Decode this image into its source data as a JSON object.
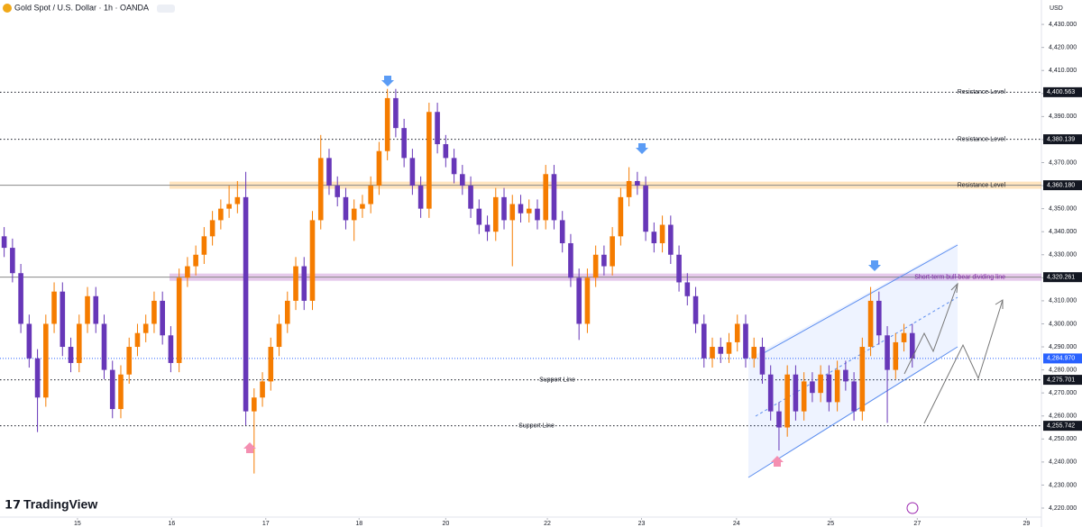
{
  "chart_data": {
    "type": "candlestick",
    "title": "Gold Spot / U.S. Dollar · 1h · OANDA",
    "currency": "USD",
    "watermark": "TradingView",
    "up_color": "#f57c00",
    "down_color": "#6737b8",
    "open": [
      4338,
      4333,
      4322,
      4300,
      4285,
      4268,
      4300,
      4314,
      4290,
      4283,
      4300,
      4312,
      4300,
      4280,
      4263,
      4278,
      4290,
      4296,
      4300,
      4310,
      4295,
      4283,
      4320,
      4325,
      4330,
      4338,
      4345,
      4350,
      4352,
      4355,
      4262,
      4268,
      4275,
      4290,
      4300,
      4310,
      4325,
      4310,
      4345,
      4372,
      4360,
      4355,
      4345,
      4350,
      4352,
      4360,
      4375,
      4398,
      4385,
      4372,
      4360,
      4350,
      4392,
      4378,
      4372,
      4365,
      4360,
      4350,
      4343,
      4340,
      4355,
      4345,
      4352,
      4348,
      4350,
      4345,
      4365,
      4345,
      4335,
      4320,
      4300,
      4320,
      4330,
      4325,
      4338,
      4355,
      4362,
      4360,
      4340,
      4335,
      4343,
      4330,
      4318,
      4312,
      4300,
      4285,
      4290,
      4287,
      4292,
      4300,
      4285,
      4290,
      4278,
      4262,
      4255,
      4278,
      4262,
      4275,
      4270,
      4278,
      4266,
      4280,
      4275,
      4262,
      4290,
      4310,
      4295,
      4280,
      4292,
      4296
    ],
    "high": [
      4342,
      4337,
      4326,
      4304,
      4289,
      4304,
      4318,
      4318,
      4294,
      4304,
      4316,
      4316,
      4304,
      4284,
      4282,
      4294,
      4300,
      4304,
      4314,
      4314,
      4299,
      4324,
      4329,
      4334,
      4342,
      4349,
      4354,
      4360,
      4362,
      4366,
      4272,
      4279,
      4294,
      4304,
      4314,
      4329,
      4329,
      4349,
      4382,
      4376,
      4364,
      4359,
      4354,
      4356,
      4364,
      4379,
      4402,
      4402,
      4389,
      4376,
      4364,
      4396,
      4396,
      4382,
      4376,
      4369,
      4364,
      4354,
      4347,
      4359,
      4359,
      4356,
      4356,
      4354,
      4354,
      4369,
      4369,
      4349,
      4339,
      4324,
      4324,
      4334,
      4334,
      4342,
      4359,
      4368,
      4366,
      4364,
      4344,
      4347,
      4347,
      4334,
      4322,
      4316,
      4304,
      4294,
      4294,
      4296,
      4304,
      4304,
      4294,
      4294,
      4282,
      4266,
      4282,
      4282,
      4279,
      4279,
      4282,
      4282,
      4284,
      4284,
      4279,
      4294,
      4316,
      4314,
      4299,
      4296,
      4300,
      4300
    ],
    "low": [
      4329,
      4318,
      4296,
      4281,
      4253,
      4264,
      4296,
      4286,
      4279,
      4279,
      4296,
      4296,
      4276,
      4259,
      4259,
      4274,
      4286,
      4292,
      4296,
      4291,
      4279,
      4279,
      4316,
      4321,
      4326,
      4334,
      4341,
      4346,
      4348,
      4256,
      4235,
      4264,
      4271,
      4286,
      4296,
      4306,
      4306,
      4306,
      4341,
      4356,
      4351,
      4341,
      4336,
      4346,
      4348,
      4356,
      4371,
      4381,
      4368,
      4356,
      4346,
      4346,
      4374,
      4368,
      4361,
      4356,
      4346,
      4339,
      4336,
      4336,
      4341,
      4325,
      4344,
      4344,
      4341,
      4341,
      4341,
      4331,
      4316,
      4293,
      4296,
      4316,
      4321,
      4321,
      4334,
      4351,
      4356,
      4336,
      4331,
      4331,
      4326,
      4314,
      4308,
      4296,
      4281,
      4281,
      4283,
      4283,
      4288,
      4281,
      4281,
      4274,
      4258,
      4245,
      4251,
      4258,
      4258,
      4266,
      4266,
      4262,
      4262,
      4271,
      4258,
      4258,
      4286,
      4291,
      4257,
      4276,
      4288,
      4281
    ],
    "close": [
      4333,
      4322,
      4300,
      4285,
      4268,
      4300,
      4314,
      4290,
      4283,
      4300,
      4312,
      4300,
      4280,
      4263,
      4278,
      4290,
      4296,
      4300,
      4310,
      4295,
      4283,
      4320,
      4325,
      4330,
      4338,
      4345,
      4350,
      4352,
      4355,
      4262,
      4268,
      4275,
      4290,
      4300,
      4310,
      4325,
      4310,
      4345,
      4372,
      4360,
      4355,
      4345,
      4350,
      4352,
      4360,
      4375,
      4398,
      4385,
      4372,
      4360,
      4350,
      4392,
      4378,
      4372,
      4365,
      4360,
      4350,
      4343,
      4340,
      4355,
      4345,
      4352,
      4348,
      4350,
      4345,
      4365,
      4345,
      4335,
      4320,
      4300,
      4320,
      4330,
      4325,
      4338,
      4355,
      4362,
      4360,
      4340,
      4335,
      4343,
      4330,
      4318,
      4312,
      4300,
      4285,
      4290,
      4287,
      4292,
      4300,
      4285,
      4290,
      4278,
      4262,
      4255,
      4278,
      4262,
      4275,
      4270,
      4278,
      4266,
      4280,
      4275,
      4262,
      4290,
      4310,
      4295,
      4280,
      4292,
      4296,
      4284.97
    ],
    "xlim": [
      0,
      125
    ],
    "xticks": [
      {
        "value": 9.3,
        "label": "15"
      },
      {
        "value": 20.6,
        "label": "16"
      },
      {
        "value": 31.9,
        "label": "17"
      },
      {
        "value": 43.1,
        "label": "18"
      },
      {
        "value": 53.5,
        "label": "20"
      },
      {
        "value": 65.7,
        "label": "22"
      },
      {
        "value": 77,
        "label": "23"
      },
      {
        "value": 88.4,
        "label": "24"
      },
      {
        "value": 99.7,
        "label": "25"
      },
      {
        "value": 110.1,
        "label": "27"
      },
      {
        "value": 123.2,
        "label": "29"
      }
    ],
    "ylim": [
      4215.7,
      4440.6
    ],
    "yticks": [
      {
        "value": 4220,
        "label": "4,220.000"
      },
      {
        "value": 4230,
        "label": "4,230.000"
      },
      {
        "value": 4240,
        "label": "4,240.000"
      },
      {
        "value": 4250,
        "label": "4,250.000"
      },
      {
        "value": 4260,
        "label": "4,260.000"
      },
      {
        "value": 4270,
        "label": "4,270.000"
      },
      {
        "value": 4280,
        "label": "4,280.000"
      },
      {
        "value": 4290,
        "label": "4,290.000"
      },
      {
        "value": 4300,
        "label": "4,300.000"
      },
      {
        "value": 4310,
        "label": "4,310.000"
      },
      {
        "value": 4320,
        "label": "4,320.000"
      },
      {
        "value": 4330,
        "label": "4,330.000"
      },
      {
        "value": 4340,
        "label": "4,340.000"
      },
      {
        "value": 4350,
        "label": "4,350.000"
      },
      {
        "value": 4360,
        "label": "4,360.000"
      },
      {
        "value": 4370,
        "label": "4,370.000"
      },
      {
        "value": 4380,
        "label": "4,380.000"
      },
      {
        "value": 4390,
        "label": "4,390.000"
      },
      {
        "value": 4400,
        "label": "4,400.000"
      },
      {
        "value": 4410,
        "label": "4,410.000"
      },
      {
        "value": 4420,
        "label": "4,420.000"
      },
      {
        "value": 4430,
        "label": "4,430.000"
      }
    ],
    "levels": [
      {
        "value": 4400.563,
        "label": "4,400.563",
        "name": "Resistance Level",
        "style": "dotted",
        "color": "#131722"
      },
      {
        "value": 4380.139,
        "label": "4,380.139",
        "name": "Resistance Level",
        "style": "dotted",
        "color": "#131722"
      },
      {
        "value": 4360.18,
        "label": "4,360.180",
        "name": "Resistance Level",
        "style": "band",
        "color": "#ff9800"
      },
      {
        "value": 4320.261,
        "label": "4,320.261",
        "name": "Short-term bull-bear dividing line",
        "style": "band",
        "color": "#9c27b0"
      },
      {
        "value": 4275.701,
        "label": "4,275.701",
        "name": "Support Line",
        "style": "dotted",
        "color": "#131722"
      },
      {
        "value": 4255.742,
        "label": "4,255.742",
        "name": "Support Line",
        "style": "dotted",
        "color": "#131722"
      },
      {
        "value": 4284.97,
        "label": "4,284.970",
        "style": "price",
        "color": "#2962ff"
      }
    ]
  }
}
